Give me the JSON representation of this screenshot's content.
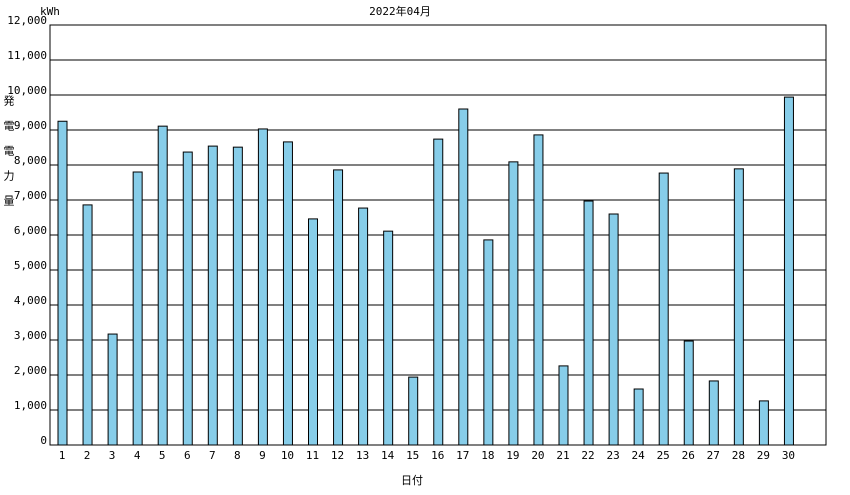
{
  "chart_data": {
    "type": "bar",
    "title": "2022年04月",
    "unit": "kWh",
    "y_label": "発電電力量",
    "x_label": "日付",
    "categories": [
      "1",
      "2",
      "3",
      "4",
      "5",
      "6",
      "7",
      "8",
      "9",
      "10",
      "11",
      "12",
      "13",
      "14",
      "15",
      "16",
      "17",
      "18",
      "19",
      "20",
      "21",
      "22",
      "23",
      "24",
      "25",
      "26",
      "27",
      "28",
      "29",
      "30"
    ],
    "values": [
      9250,
      6860,
      3170,
      7800,
      9110,
      8370,
      8540,
      8510,
      9030,
      8660,
      6460,
      7860,
      6770,
      6110,
      1940,
      8740,
      9600,
      5860,
      8090,
      8860,
      2260,
      6970,
      6600,
      1600,
      7770,
      2970,
      1830,
      7890,
      1260,
      9940
    ],
    "color": "#87cde9",
    "ylim": [
      0,
      12000
    ],
    "yticks": [
      0,
      {
        "value": 1000,
        "label": "1,000"
      },
      {
        "value": 2000,
        "label": "2,000"
      },
      {
        "value": 3000,
        "label": "3,000"
      },
      {
        "value": 4000,
        "label": "4,000"
      },
      {
        "value": 5000,
        "label": "5,000"
      },
      {
        "value": 6000,
        "label": "6,000"
      },
      {
        "value": 7000,
        "label": "7,000"
      },
      {
        "value": 8000,
        "label": "8,000"
      },
      {
        "value": 9000,
        "label": "9,000"
      },
      {
        "value": 10000,
        "label": "10,000"
      },
      {
        "value": 11000,
        "label": "11,000"
      },
      {
        "value": 12000,
        "label": "12,000"
      }
    ],
    "grid": true
  }
}
